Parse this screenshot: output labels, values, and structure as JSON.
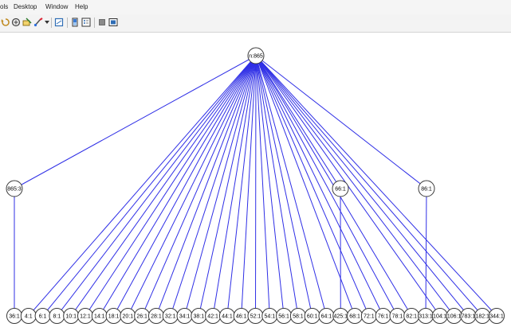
{
  "menu": {
    "items": [
      "ols",
      "Desktop",
      "Window",
      "Help"
    ]
  },
  "toolbar": {
    "icons": [
      "rotate-icon",
      "pan-icon",
      "data-cursor-icon",
      "brush-icon",
      "dropdown-arrow-icon",
      "print-icon",
      "insert-colorbar-icon",
      "insert-legend-icon",
      "hide-plot-tools-icon",
      "show-plot-tools-icon"
    ]
  },
  "tree": {
    "root": {
      "label": "n:865"
    },
    "middle": [
      {
        "label": "865:3"
      },
      {
        "label": "66:1"
      },
      {
        "label": "86:1"
      }
    ],
    "leaves": [
      "36:1",
      "4:1",
      "6:1",
      "8:1",
      "10:1",
      "12:1",
      "14:1",
      "18:1",
      "20:1",
      "26:1",
      "28:1",
      "32:1",
      "34:1",
      "38:1",
      "42:1",
      "44:1",
      "46:1",
      "52:1",
      "54:1",
      "56:1",
      "58:1",
      "60:1",
      "64:1",
      "425:1",
      "68:1",
      "72:1",
      "76:1",
      "78:1",
      "82:1",
      "313:1",
      "104:1",
      "106:1",
      "783:1",
      "182:1",
      "344:1"
    ],
    "leaf_parent": [
      0,
      null,
      null,
      null,
      null,
      null,
      null,
      null,
      null,
      null,
      null,
      null,
      null,
      null,
      null,
      null,
      null,
      null,
      null,
      null,
      null,
      null,
      null,
      1,
      null,
      null,
      null,
      null,
      null,
      2,
      null,
      null,
      null,
      null,
      null
    ],
    "edge_color": "#2f2fe6",
    "node_border_color": "#3a3a3a"
  }
}
